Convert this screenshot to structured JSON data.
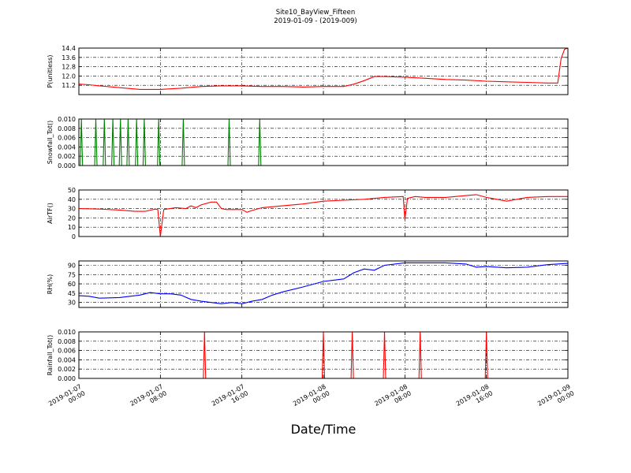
{
  "figure": {
    "title": "Site10_BayView_Fifteen",
    "subtitle": "2019-01-09 - (2019-009)",
    "xlabel": "Date/Time",
    "x_ticks": [
      "2019-01-07\n00:00",
      "2019-01-07\n08:00",
      "2019-01-07\n16:00",
      "2019-01-08\n00:00",
      "2019-01-08\n08:00",
      "2019-01-08\n16:00",
      "2019-01-09\n00:00"
    ],
    "x_range": [
      "2019-01-07 00:00",
      "2019-01-09 00:00"
    ],
    "grid": true,
    "grid_style": "dash-dot"
  },
  "chart_data": [
    {
      "type": "line",
      "ylabel": "P(unitless)",
      "color": "#ff0000",
      "ylim": [
        10.4,
        14.4
      ],
      "yticks": [
        11.2,
        12.0,
        12.8,
        13.6,
        14.4
      ],
      "ytick_labels": [
        "11.2",
        "12.0",
        "12.8",
        "13.6",
        "14.4"
      ],
      "x": [
        "2019-01-07 00:00",
        "2019-01-07 01:00",
        "2019-01-07 02:00",
        "2019-01-07 04:00",
        "2019-01-07 06:00",
        "2019-01-07 08:00",
        "2019-01-07 10:00",
        "2019-01-07 12:00",
        "2019-01-07 14:00",
        "2019-01-07 16:00",
        "2019-01-07 18:00",
        "2019-01-07 20:00",
        "2019-01-07 22:00",
        "2019-01-08 00:00",
        "2019-01-08 02:00",
        "2019-01-08 03:00",
        "2019-01-08 04:00",
        "2019-01-08 05:00",
        "2019-01-08 06:00",
        "2019-01-08 08:00",
        "2019-01-08 10:00",
        "2019-01-08 12:00",
        "2019-01-08 14:00",
        "2019-01-08 16:00",
        "2019-01-08 18:00",
        "2019-01-08 20:00",
        "2019-01-08 22:00",
        "2019-01-08 23:00",
        "2019-01-08 23:20",
        "2019-01-08 23:40",
        "2019-01-09 00:00"
      ],
      "y": [
        11.3,
        11.25,
        11.15,
        11.0,
        10.85,
        10.85,
        10.95,
        11.1,
        11.15,
        11.15,
        11.1,
        11.1,
        11.05,
        11.1,
        11.1,
        11.3,
        11.6,
        11.95,
        11.95,
        11.9,
        11.8,
        11.7,
        11.65,
        11.55,
        11.5,
        11.45,
        11.4,
        11.4,
        13.5,
        14.3,
        14.4
      ]
    },
    {
      "type": "line",
      "ylabel": "Snowfall_Tot()",
      "color": "#008000",
      "ylim": [
        0.0,
        0.01
      ],
      "yticks": [
        0.0,
        0.002,
        0.004,
        0.006,
        0.008,
        0.01
      ],
      "ytick_labels": [
        "0.000",
        "0.002",
        "0.004",
        "0.006",
        "0.008",
        "0.010"
      ],
      "baseline": 0,
      "spikes": [
        {
          "x": "2019-01-07 00:15",
          "y": 0.01
        },
        {
          "x": "2019-01-07 01:40",
          "y": 0.01
        },
        {
          "x": "2019-01-07 02:30",
          "y": 0.01
        },
        {
          "x": "2019-01-07 03:20",
          "y": 0.01
        },
        {
          "x": "2019-01-07 04:05",
          "y": 0.01
        },
        {
          "x": "2019-01-07 04:50",
          "y": 0.01
        },
        {
          "x": "2019-01-07 05:40",
          "y": 0.01
        },
        {
          "x": "2019-01-07 06:25",
          "y": 0.01
        },
        {
          "x": "2019-01-07 07:50",
          "y": 0.01
        },
        {
          "x": "2019-01-07 10:15",
          "y": 0.01
        },
        {
          "x": "2019-01-07 14:45",
          "y": 0.01
        },
        {
          "x": "2019-01-07 17:45",
          "y": 0.01
        }
      ]
    },
    {
      "type": "line",
      "ylabel": "AirTF()",
      "color": "#ff0000",
      "ylim": [
        0,
        50
      ],
      "yticks": [
        0,
        10,
        20,
        30,
        40,
        50
      ],
      "ytick_labels": [
        "0",
        "10",
        "20",
        "30",
        "40",
        "50"
      ],
      "x": [
        "2019-01-07 00:00",
        "2019-01-07 02:00",
        "2019-01-07 04:00",
        "2019-01-07 05:30",
        "2019-01-07 06:30",
        "2019-01-07 07:30",
        "2019-01-07 07:45",
        "2019-01-07 08:00",
        "2019-01-07 08:20",
        "2019-01-07 09:30",
        "2019-01-07 10:30",
        "2019-01-07 11:00",
        "2019-01-07 11:30",
        "2019-01-07 12:00",
        "2019-01-07 13:00",
        "2019-01-07 13:30",
        "2019-01-07 14:00",
        "2019-01-07 14:30",
        "2019-01-07 15:00",
        "2019-01-07 16:00",
        "2019-01-07 16:30",
        "2019-01-07 17:00",
        "2019-01-07 18:00",
        "2019-01-07 20:00",
        "2019-01-07 22:00",
        "2019-01-08 00:00",
        "2019-01-08 02:00",
        "2019-01-08 04:00",
        "2019-01-08 06:00",
        "2019-01-08 07:50",
        "2019-01-08 08:00",
        "2019-01-08 08:15",
        "2019-01-08 09:00",
        "2019-01-08 10:00",
        "2019-01-08 12:00",
        "2019-01-08 14:00",
        "2019-01-08 15:00",
        "2019-01-08 16:00",
        "2019-01-08 16:30",
        "2019-01-08 18:00",
        "2019-01-08 20:00",
        "2019-01-08 22:00",
        "2019-01-09 00:00"
      ],
      "y": [
        30,
        29.5,
        28.5,
        27,
        27,
        29.5,
        29,
        0,
        29,
        31,
        30,
        33,
        31,
        34,
        37,
        37,
        30,
        29,
        29,
        29,
        26,
        28,
        31,
        33,
        35,
        38,
        39,
        40,
        42,
        43,
        18,
        41,
        43,
        42,
        42,
        44,
        45,
        42,
        41,
        38,
        42,
        43,
        43
      ]
    },
    {
      "type": "line",
      "ylabel": "RH(%)",
      "color": "#0000ff",
      "ylim": [
        22,
        97
      ],
      "yticks": [
        30,
        45,
        60,
        75,
        90
      ],
      "ytick_labels": [
        "30",
        "45",
        "60",
        "75",
        "90"
      ],
      "x": [
        "2019-01-07 00:00",
        "2019-01-07 01:00",
        "2019-01-07 02:00",
        "2019-01-07 04:00",
        "2019-01-07 06:00",
        "2019-01-07 07:00",
        "2019-01-07 08:00",
        "2019-01-07 09:00",
        "2019-01-07 10:00",
        "2019-01-07 11:00",
        "2019-01-07 12:00",
        "2019-01-07 13:00",
        "2019-01-07 14:00",
        "2019-01-07 15:00",
        "2019-01-07 16:00",
        "2019-01-07 17:00",
        "2019-01-07 18:00",
        "2019-01-07 19:00",
        "2019-01-07 20:00",
        "2019-01-07 22:00",
        "2019-01-08 00:00",
        "2019-01-08 01:00",
        "2019-01-08 02:00",
        "2019-01-08 03:00",
        "2019-01-08 04:00",
        "2019-01-08 05:00",
        "2019-01-08 06:00",
        "2019-01-08 08:00",
        "2019-01-08 10:00",
        "2019-01-08 12:00",
        "2019-01-08 14:00",
        "2019-01-08 15:00",
        "2019-01-08 16:00",
        "2019-01-08 18:00",
        "2019-01-08 20:00",
        "2019-01-08 22:00",
        "2019-01-09 00:00"
      ],
      "y": [
        41,
        40,
        37,
        38,
        42,
        46,
        44,
        44,
        42,
        35,
        32,
        30,
        28,
        30,
        28,
        32,
        35,
        42,
        47,
        55,
        64,
        66,
        68,
        78,
        84,
        82,
        90,
        94,
        94,
        94,
        92,
        87,
        88,
        86,
        87,
        91,
        93
      ]
    },
    {
      "type": "line",
      "ylabel": "Rainfall_Tot()",
      "color": "#ff0000",
      "ylim": [
        0.0,
        0.01
      ],
      "yticks": [
        0.0,
        0.002,
        0.004,
        0.006,
        0.008,
        0.01
      ],
      "ytick_labels": [
        "0.000",
        "0.002",
        "0.004",
        "0.006",
        "0.008",
        "0.010"
      ],
      "baseline": 0,
      "spikes": [
        {
          "x": "2019-01-07 12:20",
          "y": 0.01
        },
        {
          "x": "2019-01-08 00:00",
          "y": 0.01
        },
        {
          "x": "2019-01-08 02:50",
          "y": 0.01
        },
        {
          "x": "2019-01-08 06:00",
          "y": 0.01
        },
        {
          "x": "2019-01-08 09:30",
          "y": 0.01
        },
        {
          "x": "2019-01-08 16:00",
          "y": 0.01
        }
      ]
    }
  ]
}
